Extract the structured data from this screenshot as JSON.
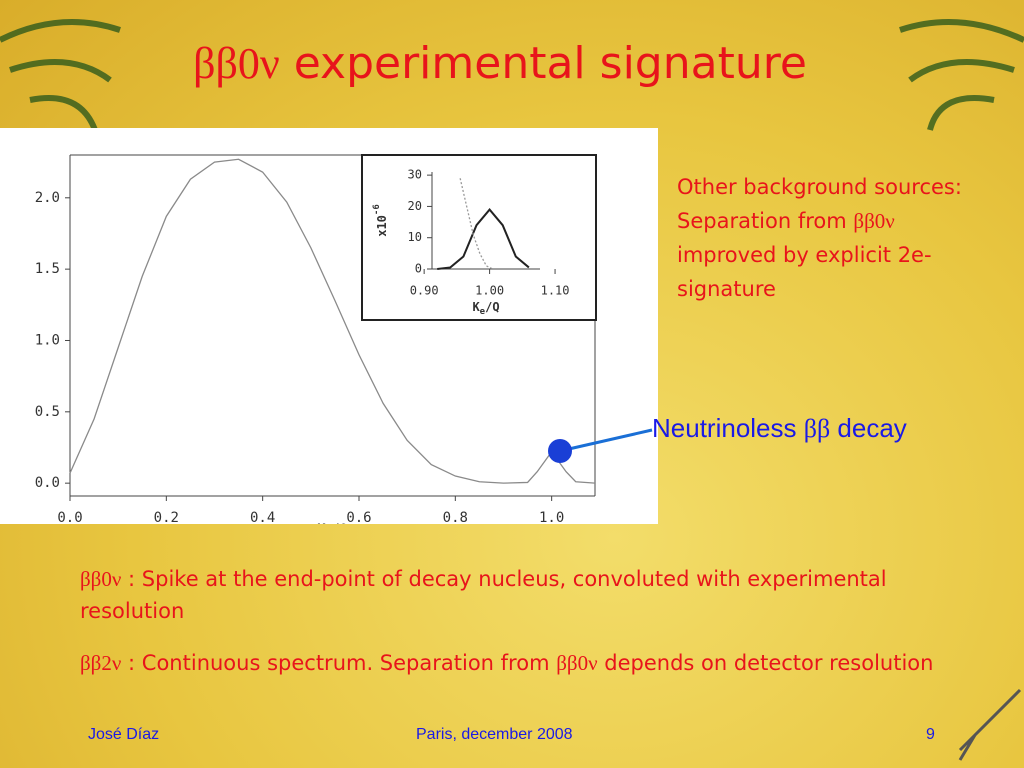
{
  "slide": {
    "title_symbol": "ββ0ν",
    "title_text": "experimental signature",
    "side_note": [
      "Other background sources:  Separation from ",
      "ββ0ν",
      " improved by explicit 2e- signature"
    ],
    "callout": [
      "Neutrinoless ",
      "ββ",
      " decay"
    ],
    "bullets": [
      [
        "ββ0ν",
        " :  Spike at the end-point of decay nucleus, convoluted with experimental resolution"
      ],
      [
        "ββ2ν",
        " : Continuous spectrum. Separation from ",
        "ββ0ν",
        " depends on detector resolution"
      ]
    ],
    "footer_author": "José Díaz",
    "footer_event": "Paris, december 2008",
    "footer_page": "9"
  },
  "chart_data": [
    {
      "type": "line",
      "x_label": "K",
      "x_label_subscript": "e",
      "x_label_rest": "/Q",
      "xlim": [
        0,
        1.09
      ],
      "ylim": [
        -0.09,
        2.3
      ],
      "xticks": [
        {
          "value": 0,
          "label": "0.0"
        },
        0.2,
        0.4,
        0.6,
        0.8,
        {
          "value": 1,
          "label": "1.0"
        }
      ],
      "yticks": [
        {
          "value": 0,
          "label": "0.0"
        },
        0.5,
        {
          "value": 1,
          "label": "1.0"
        },
        1.5,
        {
          "value": 2,
          "label": "2.0"
        }
      ],
      "series": [
        {
          "color": "#8a8a8a",
          "x": [
            0,
            0.05,
            0.1,
            0.15,
            0.2,
            0.25,
            0.3,
            0.35,
            0.4,
            0.45,
            0.5,
            0.55,
            0.6,
            0.65,
            0.7,
            0.75,
            0.8,
            0.85,
            0.9,
            0.95,
            0.97,
            1.0,
            1.03,
            1.05,
            1.09
          ],
          "values": [
            0.07,
            0.45,
            0.95,
            1.45,
            1.87,
            2.13,
            2.25,
            2.27,
            2.18,
            1.97,
            1.65,
            1.28,
            0.9,
            0.56,
            0.3,
            0.13,
            0.05,
            0.01,
            0,
            0.005,
            0.08,
            0.22,
            0.08,
            0.01,
            0
          ]
        }
      ]
    },
    {
      "type": "line",
      "y_label": "x10",
      "y_label_exponent": "-6",
      "x_label": "K",
      "x_label_subscript": "e",
      "x_label_rest": "/Q",
      "xlim": [
        0.912,
        1.077
      ],
      "ylim": [
        0,
        31
      ],
      "xticks": [
        {
          "value": 0.9,
          "label": "0.90"
        },
        {
          "value": 1,
          "label": "1.00"
        },
        {
          "value": 1.1,
          "label": "1.10"
        }
      ],
      "yticks": [
        0,
        10,
        20,
        30
      ],
      "series": [
        {
          "color": "#222222",
          "x": [
            0.92,
            0.94,
            0.96,
            0.98,
            1.0,
            1.02,
            1.04,
            1.06
          ],
          "values": [
            0,
            0.5,
            4,
            14,
            19,
            14,
            4,
            0.5
          ]
        },
        {
          "color": "#999999",
          "x": [
            0.955,
            0.965,
            0.975,
            0.985,
            0.995,
            1.005
          ],
          "values": [
            29,
            20,
            11,
            5,
            1,
            0
          ]
        }
      ]
    }
  ]
}
